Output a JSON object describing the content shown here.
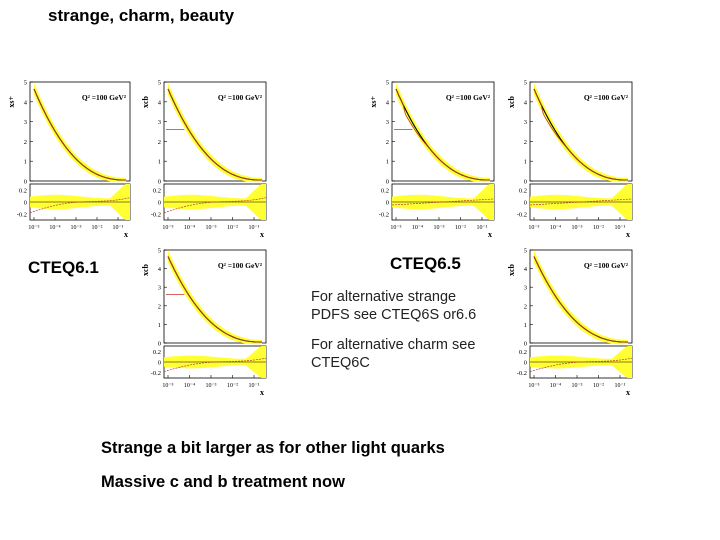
{
  "slide": {
    "title": "strange, charm, beauty",
    "label_left": "CTEQ6.1",
    "label_right": "CTEQ6.5",
    "note_strange": [
      "For alternative strange",
      "PDFS see CTEQ6S or6.6"
    ],
    "note_charm": [
      "For alternative charm see",
      "CTEQ6C"
    ],
    "bullets": [
      "Strange a bit larger as for other light quarks",
      "Massive c and b treatment now"
    ]
  },
  "colors": {
    "band": "#ffff33",
    "central": "#000000",
    "alt": "#c0392b",
    "frame": "#000000"
  },
  "chart_data": [
    {
      "type": "line",
      "id": "p1",
      "ylabel": "xs+",
      "scale_label": "Q² =100 GeV²",
      "xlabel": "x",
      "x_ticks": [
        "10⁻⁵",
        "10⁻⁴",
        "10⁻³",
        "10⁻²",
        "10⁻¹"
      ],
      "y_ticks": [
        "0",
        "1",
        "2",
        "3",
        "4",
        "5"
      ],
      "ratio_y_ticks": [
        "0.2",
        "0",
        "-0.2"
      ],
      "ylim": [
        0,
        5
      ],
      "ratio_ylim": [
        -0.3,
        0.3
      ]
    },
    {
      "type": "line",
      "id": "p2",
      "ylabel": "xcb",
      "scale_label": "Q² =100 GeV²",
      "xlabel": "x",
      "x_ticks": [
        "10⁻⁵",
        "10⁻⁴",
        "10⁻³",
        "10⁻²",
        "10⁻¹"
      ],
      "y_ticks": [
        "0",
        "1",
        "2",
        "3",
        "4",
        "5"
      ],
      "ratio_y_ticks": [
        "0.2",
        "0",
        "-0.2"
      ],
      "ylim": [
        0,
        5
      ],
      "ratio_ylim": [
        -0.3,
        0.3
      ]
    },
    {
      "type": "line",
      "id": "p3",
      "ylabel": "xs+",
      "scale_label": "Q² =100 GeV²",
      "xlabel": "x",
      "x_ticks": [
        "10⁻⁵",
        "10⁻⁴",
        "10⁻³",
        "10⁻²",
        "10⁻¹"
      ],
      "y_ticks": [
        "0",
        "1",
        "2",
        "3",
        "4",
        "5"
      ],
      "ratio_y_ticks": [
        "0.2",
        "0",
        "-0.2"
      ],
      "ylim": [
        0,
        5
      ],
      "ratio_ylim": [
        -0.3,
        0.3
      ]
    },
    {
      "type": "line",
      "id": "p4",
      "ylabel": "xcb",
      "scale_label": "Q² =100 GeV²",
      "xlabel": "x",
      "x_ticks": [
        "10⁻⁵",
        "10⁻⁴",
        "10⁻³",
        "10⁻²",
        "10⁻¹"
      ],
      "y_ticks": [
        "0",
        "1",
        "2",
        "3",
        "4",
        "5"
      ],
      "ratio_y_ticks": [
        "0.2",
        "0",
        "-0.2"
      ],
      "ylim": [
        0,
        5
      ],
      "ratio_ylim": [
        -0.3,
        0.3
      ]
    },
    {
      "type": "line",
      "id": "p5",
      "ylabel": "xcb",
      "scale_label": "Q² =100 GeV²",
      "xlabel": "x",
      "x_ticks": [
        "10⁻⁵",
        "10⁻⁴",
        "10⁻³",
        "10⁻²",
        "10⁻¹"
      ],
      "y_ticks": [
        "0",
        "1",
        "2",
        "3",
        "4",
        "5"
      ],
      "ratio_y_ticks": [
        "0.2",
        "0",
        "-0.2"
      ],
      "ylim": [
        0,
        5
      ],
      "ratio_ylim": [
        -0.3,
        0.3
      ]
    },
    {
      "type": "line",
      "id": "p6",
      "ylabel": "xcb",
      "scale_label": "Q² =100 GeV²",
      "xlabel": "x",
      "x_ticks": [
        "10⁻⁵",
        "10⁻⁴",
        "10⁻³",
        "10⁻²",
        "10⁻¹"
      ],
      "y_ticks": [
        "0",
        "1",
        "2",
        "3",
        "4",
        "5"
      ],
      "ratio_y_ticks": [
        "0.2",
        "0",
        "-0.2"
      ],
      "ylim": [
        0,
        5
      ],
      "ratio_ylim": [
        -0.3,
        0.3
      ]
    }
  ]
}
